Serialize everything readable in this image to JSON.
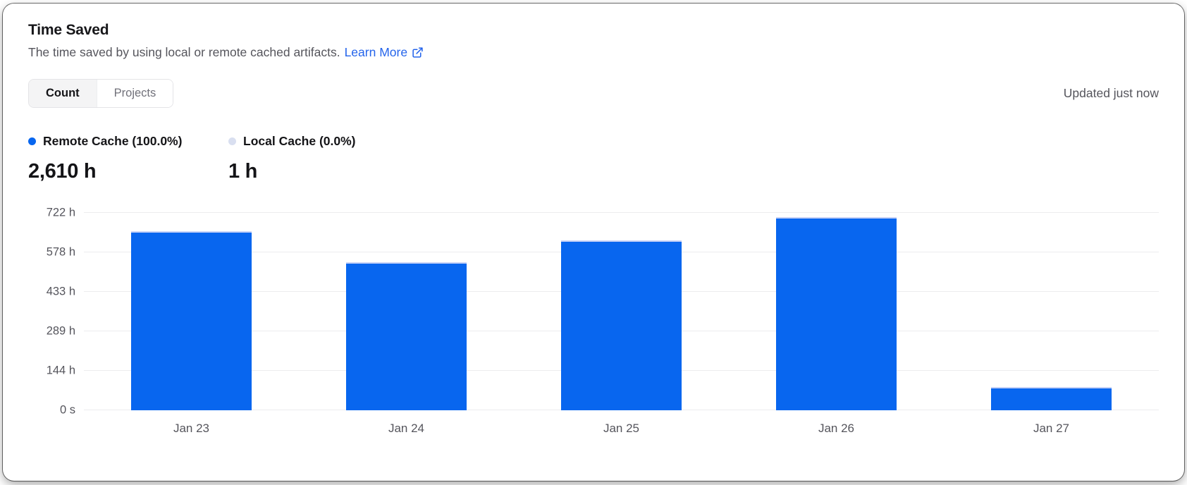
{
  "header": {
    "title": "Time Saved",
    "subtitle": "The time saved by using local or remote cached artifacts.",
    "learn_more_label": "Learn More"
  },
  "controls": {
    "tabs": [
      {
        "label": "Count",
        "active": true
      },
      {
        "label": "Projects",
        "active": false
      }
    ],
    "updated_text": "Updated just now"
  },
  "summary": {
    "remote": {
      "label": "Remote Cache (100.0%)",
      "value": "2,610 h",
      "dot_color": "#0866ef"
    },
    "local": {
      "label": "Local Cache (0.0%)",
      "value": "1 h",
      "dot_color": "#d9dff0"
    }
  },
  "chart_data": {
    "type": "bar",
    "stacked": true,
    "title": "Time Saved",
    "xlabel": "",
    "ylabel": "",
    "categories": [
      "Jan 23",
      "Jan 24",
      "Jan 25",
      "Jan 26",
      "Jan 27"
    ],
    "series": [
      {
        "name": "Remote Cache",
        "color": "#0866ef",
        "values": [
          655,
          542,
          620,
          707,
          86
        ]
      },
      {
        "name": "Local Cache",
        "color": "#c7d2f7",
        "values": [
          0.2,
          0.2,
          0.2,
          0.2,
          0.2
        ]
      }
    ],
    "total_label": "2,610 h",
    "y_max": 722,
    "y_ticks": [
      {
        "v": 0,
        "label": "0 s"
      },
      {
        "v": 144,
        "label": "144 h"
      },
      {
        "v": 289,
        "label": "289 h"
      },
      {
        "v": 433,
        "label": "433 h"
      },
      {
        "v": 578,
        "label": "578 h"
      },
      {
        "v": 722,
        "label": "722 h"
      }
    ],
    "grid": true,
    "legend_position": "top-left"
  },
  "colors": {
    "accent_blue": "#0866ef",
    "link_blue": "#2464eb",
    "text_primary": "#141417",
    "text_secondary": "#55555c",
    "gridline": "#ececee",
    "local_cache_light": "#c7d2f7"
  }
}
